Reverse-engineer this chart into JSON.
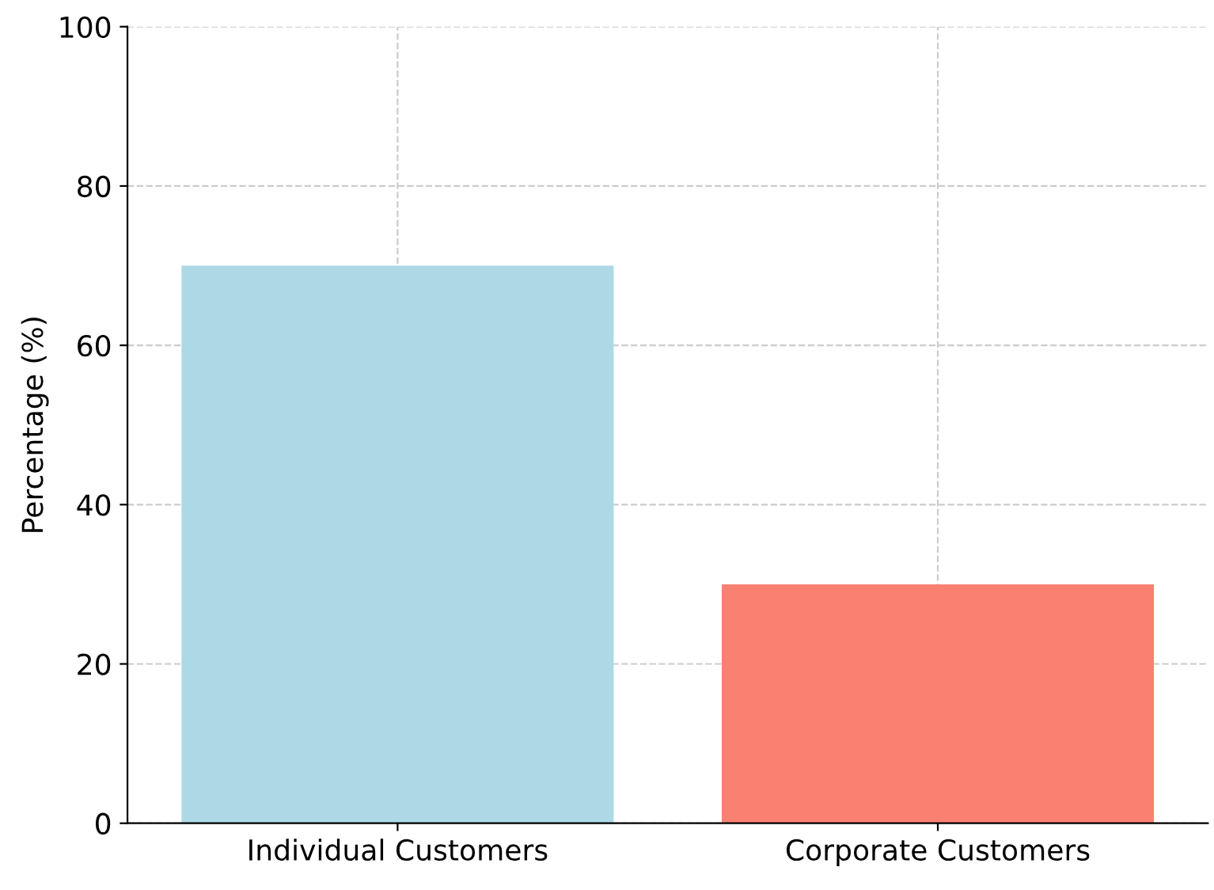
{
  "chart_data": {
    "type": "bar",
    "ylabel": "Percentage (%)",
    "categories": [
      "Individual Customers",
      "Corporate Customers"
    ],
    "values": [
      70,
      30
    ],
    "colors": [
      "#add8e6",
      "#fa8072"
    ],
    "ylim": [
      0,
      100
    ],
    "yticks": [
      0,
      20,
      40,
      60,
      80,
      100
    ],
    "grid": true
  }
}
